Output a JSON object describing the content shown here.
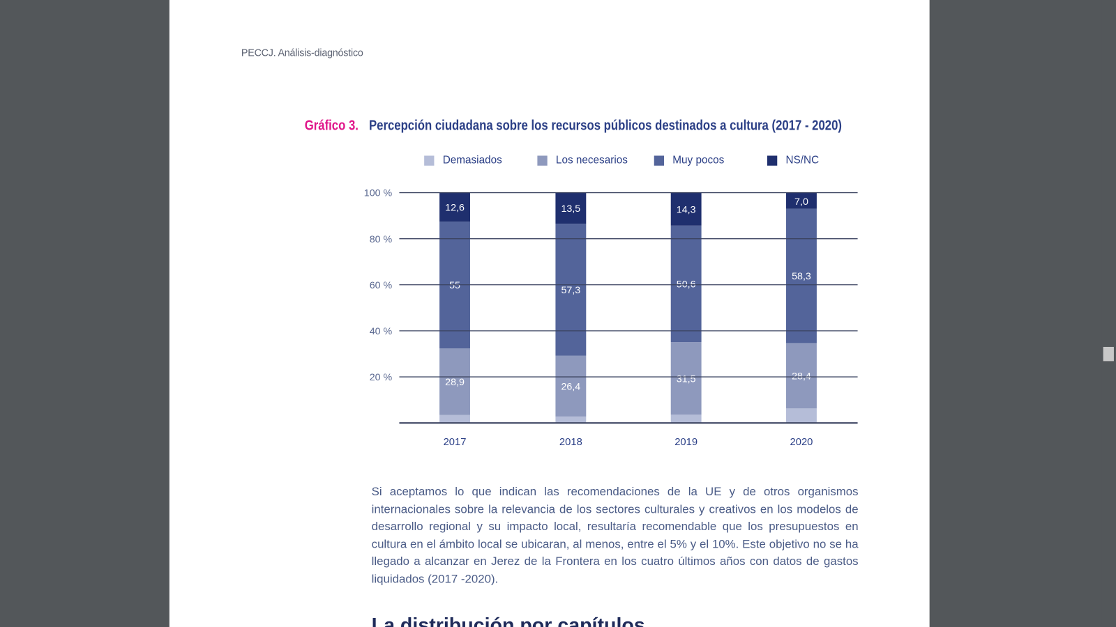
{
  "header": {
    "running_title": "PECCJ. Análisis-diagnóstico"
  },
  "figure": {
    "number": "Gráfico 3.",
    "title": "Percepción ciudadana sobre los recursos públicos destinados a cultura (2017 - 2020)"
  },
  "chart_data": {
    "type": "bar",
    "stacked": true,
    "categories": [
      "2017",
      "2018",
      "2019",
      "2020"
    ],
    "series": [
      {
        "name": "Demasiados",
        "color": "#b5bdd8",
        "values": [
          3.5,
          2.8,
          3.6,
          6.3
        ],
        "labels": [
          "",
          "",
          "",
          ""
        ]
      },
      {
        "name": "Los necesarios",
        "color": "#8e99bd",
        "values": [
          28.9,
          26.4,
          31.5,
          28.4
        ],
        "labels": [
          "28,9",
          "26,4",
          "31,5",
          "28,4"
        ]
      },
      {
        "name": "Muy pocos",
        "color": "#53649a",
        "values": [
          55,
          57.3,
          50.6,
          58.3
        ],
        "labels": [
          "55",
          "57,3",
          "50,6",
          "58,3"
        ]
      },
      {
        "name": "NS/NC",
        "color": "#1f2f6e",
        "values": [
          12.6,
          13.5,
          14.3,
          7.0
        ],
        "labels": [
          "12,6",
          "13,5",
          "14,3",
          "7,0"
        ]
      }
    ],
    "ylim": [
      0,
      100
    ],
    "yticks": [
      20,
      40,
      60,
      80,
      100
    ],
    "ytick_labels": [
      "20 %",
      "40 %",
      "60 %",
      "80 %",
      "100 %"
    ],
    "grid": true,
    "legend_position": "top"
  },
  "body": {
    "paragraph": "Si aceptamos lo que indican las recomendaciones de la UE y de otros organismos internacionales sobre la relevancia de los sectores culturales y creativos en los modelos de desarrollo regional y su impacto local, resultaría recomendable que los presupuestos en cultura en el ámbito local se ubicaran, al menos, entre el 5% y el 10%. Este objetivo no se ha llegado a alcanzar en Jerez de la Frontera en los cuatro últimos años con datos de gastos liquidados (2017 -2020).",
    "next_heading": "La distribución por capítulos"
  }
}
